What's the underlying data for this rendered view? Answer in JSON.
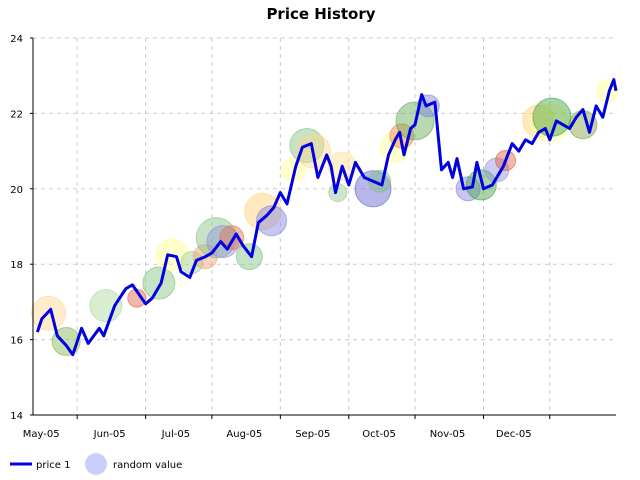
{
  "chart_data": {
    "type": "line",
    "title": "Price History",
    "xlabel": "",
    "ylabel": "",
    "ylim": [
      14,
      24
    ],
    "yticks": [
      14,
      16,
      18,
      20,
      22,
      24
    ],
    "xlim": [
      "2005-04-11",
      "2005-12-31"
    ],
    "x_tick_labels": [
      {
        "date": "2005-05-01",
        "label": "May-05"
      },
      {
        "date": "2005-06-01",
        "label": "Jun-05"
      },
      {
        "date": "2005-07-01",
        "label": "Jul-05"
      },
      {
        "date": "2005-08-01",
        "label": "Aug-05"
      },
      {
        "date": "2005-09-01",
        "label": "Sep-05"
      },
      {
        "date": "2005-10-01",
        "label": "Oct-05"
      },
      {
        "date": "2005-11-01",
        "label": "Nov-05"
      },
      {
        "date": "2005-12-01",
        "label": "Dec-05"
      }
    ],
    "grid": true,
    "legend_position": "bottom-left",
    "line_series": {
      "name": "price 1",
      "color": "#0000e0",
      "points": [
        [
          "2005-04-13",
          16.2
        ],
        [
          "2005-04-15",
          16.55
        ],
        [
          "2005-04-19",
          16.8
        ],
        [
          "2005-04-22",
          16.1
        ],
        [
          "2005-04-26",
          15.85
        ],
        [
          "2005-04-29",
          15.6
        ],
        [
          "2005-05-03",
          16.3
        ],
        [
          "2005-05-06",
          15.9
        ],
        [
          "2005-05-11",
          16.3
        ],
        [
          "2005-05-13",
          16.1
        ],
        [
          "2005-05-18",
          16.9
        ],
        [
          "2005-05-23",
          17.35
        ],
        [
          "2005-05-26",
          17.45
        ],
        [
          "2005-06-01",
          16.95
        ],
        [
          "2005-06-04",
          17.1
        ],
        [
          "2005-06-08",
          17.5
        ],
        [
          "2005-06-11",
          18.25
        ],
        [
          "2005-06-15",
          18.2
        ],
        [
          "2005-06-17",
          17.8
        ],
        [
          "2005-06-21",
          17.65
        ],
        [
          "2005-06-24",
          18.1
        ],
        [
          "2005-06-28",
          18.2
        ],
        [
          "2005-07-01",
          18.3
        ],
        [
          "2005-07-05",
          18.6
        ],
        [
          "2005-07-08",
          18.4
        ],
        [
          "2005-07-12",
          18.8
        ],
        [
          "2005-07-15",
          18.5
        ],
        [
          "2005-07-19",
          18.2
        ],
        [
          "2005-07-22",
          19.1
        ],
        [
          "2005-07-26",
          19.3
        ],
        [
          "2005-07-29",
          19.5
        ],
        [
          "2005-08-01",
          19.9
        ],
        [
          "2005-08-04",
          19.6
        ],
        [
          "2005-08-08",
          20.6
        ],
        [
          "2005-08-11",
          21.1
        ],
        [
          "2005-08-15",
          21.2
        ],
        [
          "2005-08-18",
          20.3
        ],
        [
          "2005-08-22",
          20.9
        ],
        [
          "2005-08-24",
          20.6
        ],
        [
          "2005-08-26",
          19.9
        ],
        [
          "2005-08-29",
          20.6
        ],
        [
          "2005-09-01",
          20.1
        ],
        [
          "2005-09-04",
          20.7
        ],
        [
          "2005-09-08",
          20.3
        ],
        [
          "2005-09-12",
          20.2
        ],
        [
          "2005-09-16",
          20.1
        ],
        [
          "2005-09-19",
          20.9
        ],
        [
          "2005-09-22",
          21.3
        ],
        [
          "2005-09-24",
          21.5
        ],
        [
          "2005-09-26",
          20.9
        ],
        [
          "2005-09-29",
          21.6
        ],
        [
          "2005-10-01",
          21.7
        ],
        [
          "2005-10-04",
          22.5
        ],
        [
          "2005-10-06",
          22.2
        ],
        [
          "2005-10-10",
          22.3
        ],
        [
          "2005-10-13",
          20.5
        ],
        [
          "2005-10-16",
          20.7
        ],
        [
          "2005-10-18",
          20.3
        ],
        [
          "2005-10-20",
          20.8
        ],
        [
          "2005-10-23",
          20.0
        ],
        [
          "2005-10-27",
          20.05
        ],
        [
          "2005-10-29",
          20.7
        ],
        [
          "2005-11-01",
          20.0
        ],
        [
          "2005-11-05",
          20.1
        ],
        [
          "2005-11-08",
          20.4
        ],
        [
          "2005-11-10",
          20.6
        ],
        [
          "2005-11-14",
          21.2
        ],
        [
          "2005-11-17",
          21.0
        ],
        [
          "2005-11-20",
          21.3
        ],
        [
          "2005-11-23",
          21.2
        ],
        [
          "2005-11-26",
          21.5
        ],
        [
          "2005-11-29",
          21.6
        ],
        [
          "2005-12-01",
          21.3
        ],
        [
          "2005-12-04",
          21.8
        ],
        [
          "2005-12-07",
          21.7
        ],
        [
          "2005-12-10",
          21.6
        ],
        [
          "2005-12-13",
          21.9
        ],
        [
          "2005-12-16",
          22.1
        ],
        [
          "2005-12-19",
          21.5
        ],
        [
          "2005-12-22",
          22.2
        ],
        [
          "2005-12-25",
          21.9
        ],
        [
          "2005-12-28",
          22.6
        ],
        [
          "2005-12-30",
          22.9
        ],
        [
          "2005-12-31",
          22.6
        ]
      ]
    },
    "bubble_series": {
      "name": "random value",
      "points": [
        {
          "x": "2005-04-18",
          "y": 16.7,
          "r": 17,
          "color": "#fdd590"
        },
        {
          "x": "2005-04-26",
          "y": 15.95,
          "r": 14,
          "color": "#80b850"
        },
        {
          "x": "2005-05-14",
          "y": 16.9,
          "r": 16,
          "color": "#a8d898"
        },
        {
          "x": "2005-05-28",
          "y": 17.1,
          "r": 9,
          "color": "#e06040"
        },
        {
          "x": "2005-06-07",
          "y": 17.5,
          "r": 16,
          "color": "#80c080"
        },
        {
          "x": "2005-06-13",
          "y": 18.25,
          "r": 16,
          "color": "#ffff90"
        },
        {
          "x": "2005-06-22",
          "y": 18.05,
          "r": 11,
          "color": "#a0d090"
        },
        {
          "x": "2005-06-28",
          "y": 18.2,
          "r": 12,
          "color": "#f0a070"
        },
        {
          "x": "2005-07-03",
          "y": 18.7,
          "r": 20,
          "color": "#80c080"
        },
        {
          "x": "2005-07-06",
          "y": 18.6,
          "r": 16,
          "color": "#9090e0"
        },
        {
          "x": "2005-07-10",
          "y": 18.7,
          "r": 12,
          "color": "#e07050"
        },
        {
          "x": "2005-07-18",
          "y": 18.2,
          "r": 13,
          "color": "#80c080"
        },
        {
          "x": "2005-07-24",
          "y": 19.4,
          "r": 18,
          "color": "#ffd070"
        },
        {
          "x": "2005-07-28",
          "y": 19.15,
          "r": 15,
          "color": "#8080e0"
        },
        {
          "x": "2005-08-07",
          "y": 20.5,
          "r": 12,
          "color": "#ffff90"
        },
        {
          "x": "2005-08-13",
          "y": 21.15,
          "r": 17,
          "color": "#80c080"
        },
        {
          "x": "2005-08-16",
          "y": 21.0,
          "r": 17,
          "color": "#fdd590"
        },
        {
          "x": "2005-08-27",
          "y": 19.9,
          "r": 9,
          "color": "#90c890"
        },
        {
          "x": "2005-08-29",
          "y": 20.6,
          "r": 14,
          "color": "#ffe090"
        },
        {
          "x": "2005-09-12",
          "y": 20.0,
          "r": 18,
          "color": "#6060d0"
        },
        {
          "x": "2005-09-15",
          "y": 20.2,
          "r": 11,
          "color": "#80c080"
        },
        {
          "x": "2005-09-22",
          "y": 21.1,
          "r": 15,
          "color": "#ffff90"
        },
        {
          "x": "2005-09-25",
          "y": 21.4,
          "r": 12,
          "color": "#f08040"
        },
        {
          "x": "2005-10-01",
          "y": 21.8,
          "r": 19,
          "color": "#60a850"
        },
        {
          "x": "2005-10-07",
          "y": 22.2,
          "r": 11,
          "color": "#8080e0"
        },
        {
          "x": "2005-10-25",
          "y": 20.0,
          "r": 12,
          "color": "#8080e0"
        },
        {
          "x": "2005-10-31",
          "y": 20.1,
          "r": 15,
          "color": "#40a040"
        },
        {
          "x": "2005-11-07",
          "y": 20.5,
          "r": 12,
          "color": "#9090e0"
        },
        {
          "x": "2005-11-11",
          "y": 20.75,
          "r": 10,
          "color": "#e06040"
        },
        {
          "x": "2005-11-26",
          "y": 21.8,
          "r": 16,
          "color": "#ffd070"
        },
        {
          "x": "2005-12-01",
          "y": 21.75,
          "r": 19,
          "color": "#ffff90"
        },
        {
          "x": "2005-12-02",
          "y": 21.9,
          "r": 19,
          "color": "#40a040"
        },
        {
          "x": "2005-12-16",
          "y": 21.7,
          "r": 14,
          "color": "#80a040"
        },
        {
          "x": "2005-12-27",
          "y": 22.6,
          "r": 11,
          "color": "#ffff90"
        }
      ]
    },
    "legend": [
      {
        "label": "price 1",
        "kind": "line",
        "color": "#0000e0"
      },
      {
        "label": "random value",
        "kind": "bubble",
        "color": "#c8c8f8"
      }
    ]
  }
}
